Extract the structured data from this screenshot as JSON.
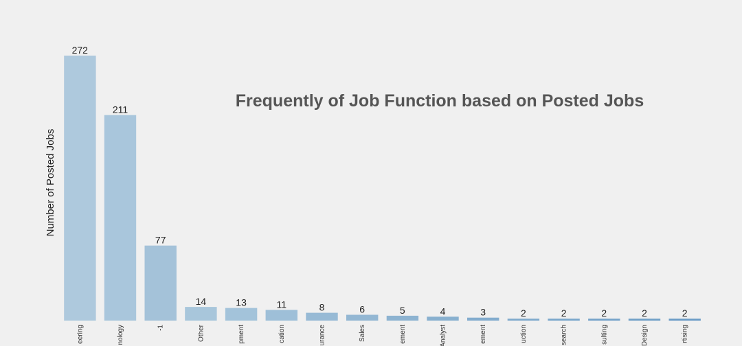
{
  "chart_data": {
    "type": "bar",
    "title": "Frequently of Job Function based on Posted Jobs",
    "xlabel": "",
    "ylabel": "Number of Posted Jobs",
    "categories": [
      "eering",
      "nology",
      "-1",
      "Other",
      "pment",
      "cation",
      "urance",
      "Sales",
      "ement",
      "Analyst",
      "ement",
      "uction",
      "search",
      "sulting",
      "Design",
      "rtising"
    ],
    "values": [
      272,
      211,
      77,
      14,
      13,
      11,
      8,
      6,
      5,
      4,
      3,
      2,
      2,
      2,
      2,
      2
    ],
    "ylim": [
      0,
      272
    ],
    "grid": false,
    "colors": [
      "#aec9dd",
      "#a9c6dc",
      "#a4c2d9",
      "#a8c6db",
      "#a3c3da",
      "#9ebfd8",
      "#97bad5",
      "#93b7d3",
      "#8db3d1",
      "#88b0cf",
      "#83acce",
      "#7ea9cc",
      "#79a6cb",
      "#74a2c9",
      "#6f9fc7",
      "#6a9bc6"
    ]
  }
}
